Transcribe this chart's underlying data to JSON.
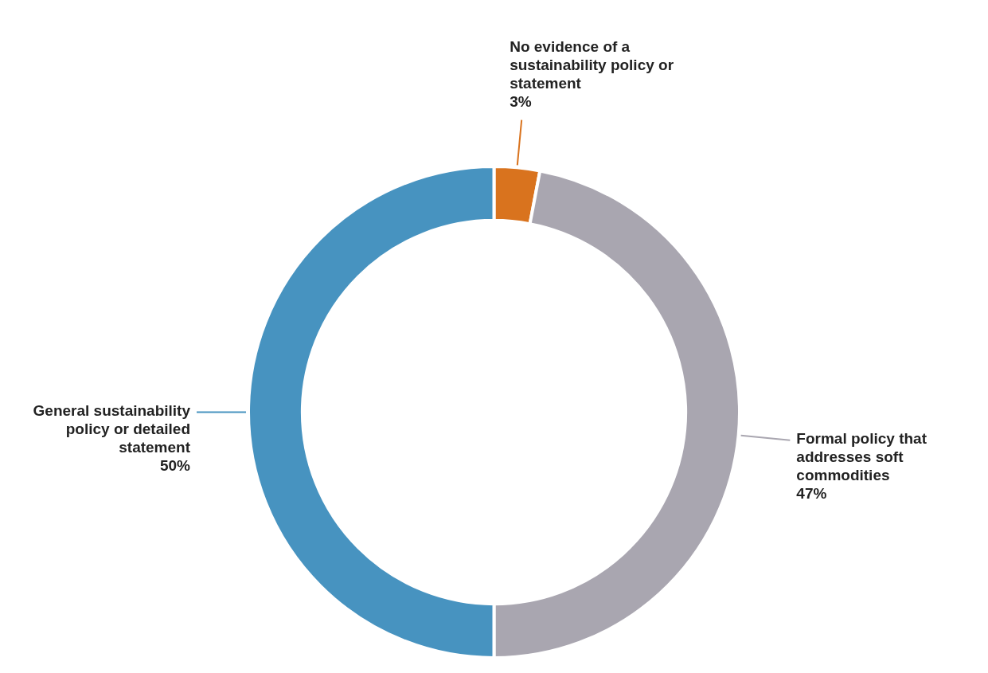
{
  "chart_data": {
    "type": "donut",
    "categories": [
      "No evidence of a sustainability policy or statement",
      "Formal policy that addresses soft commodities",
      "General sustainability policy or detailed statement"
    ],
    "values": [
      3,
      47,
      50
    ],
    "value_labels": [
      "3%",
      "47%",
      "50%"
    ],
    "colors": [
      "#d9731e",
      "#a9a6b0",
      "#4793c0"
    ],
    "legend": false
  }
}
